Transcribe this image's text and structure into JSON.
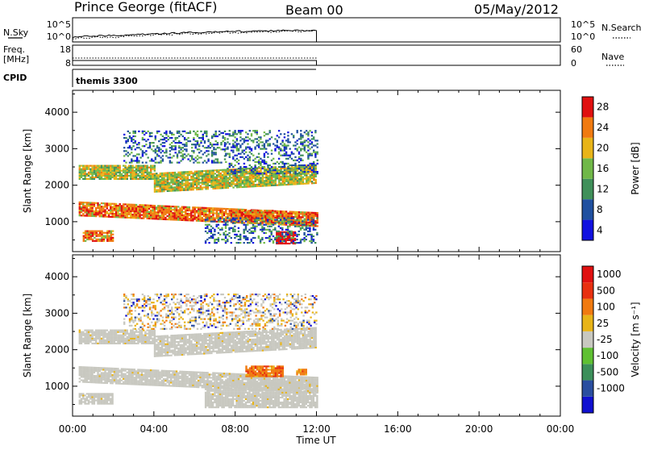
{
  "header": {
    "station": "Prince George (fitACF)",
    "beam": "Beam 00",
    "date": "05/May/2012"
  },
  "strip_labels": {
    "nsky": "N.Sky",
    "nsky_top": "10^5",
    "nsky_bottom": "10^0",
    "nsearch": "N.Search",
    "nsearch_top": "10^5",
    "nsearch_bottom": "10^0",
    "freq_line1": "Freq.",
    "freq_line2": "[MHz]",
    "freq_top": "18",
    "freq_bottom": "8",
    "nave": "Nave",
    "nave_top": "60",
    "nave_bottom": "0",
    "cpid": "CPID",
    "cpid_value": "themis 3300"
  },
  "chart_data": [
    {
      "type": "heatmap",
      "parameter": "Power",
      "ylabel": "Slant Range [km]",
      "colorbar_label": "Power [dB]",
      "colorbar_ticks": [
        "4",
        "8",
        "12",
        "16",
        "20",
        "24",
        "28"
      ],
      "colors": [
        "#1010e0",
        "#2050a0",
        "#40905a",
        "#70b848",
        "#e8b418",
        "#f07a10",
        "#e01010"
      ],
      "xlim": [
        "00:00",
        "24:00"
      ],
      "ylim": [
        180,
        4600
      ],
      "yticks": [
        1000,
        2000,
        3000,
        4000
      ],
      "data_end": "12:00",
      "bands": [
        {
          "t0": 0.3,
          "t1": 12.0,
          "r0": 1150,
          "r1": 1550,
          "level": "high",
          "slope": -25
        },
        {
          "t0": 0.3,
          "t1": 4.0,
          "r0": 2150,
          "r1": 2550,
          "level": "mid",
          "slope": 0
        },
        {
          "t0": 4.0,
          "t1": 12.0,
          "r0": 1800,
          "r1": 2300,
          "level": "mid",
          "slope": 30
        },
        {
          "t0": 2.5,
          "t1": 7.5,
          "r0": 2600,
          "r1": 3500,
          "level": "low",
          "slope": 0
        },
        {
          "t0": 7.5,
          "t1": 12.0,
          "r0": 2300,
          "r1": 3500,
          "level": "low",
          "slope": 0
        },
        {
          "t0": 8.0,
          "t1": 9.8,
          "r0": 1100,
          "r1": 1300,
          "level": "high",
          "slope": 0
        },
        {
          "t0": 10.0,
          "t1": 10.9,
          "r0": 380,
          "r1": 700,
          "level": "peak",
          "slope": 0
        },
        {
          "t0": 0.5,
          "t1": 2.0,
          "r0": 450,
          "r1": 750,
          "level": "high",
          "slope": 0
        },
        {
          "t0": 6.5,
          "t1": 12.0,
          "r0": 400,
          "r1": 1100,
          "level": "low",
          "slope": 0
        }
      ]
    },
    {
      "type": "heatmap",
      "parameter": "Velocity",
      "ylabel": "Slant Range [km]",
      "colorbar_label": "Velocity [m s⁻¹]",
      "colorbar_ticks": [
        "1000",
        "500",
        "100",
        "25",
        "-25",
        "-100",
        "-500",
        "-1000"
      ],
      "colors": [
        "#1010d0",
        "#2a4ea0",
        "#3c8f5a",
        "#5fc032",
        "#c8c8c0",
        "#e8b418",
        "#f07a10",
        "#e83010",
        "#e01010"
      ],
      "xlim": [
        "00:00",
        "24:00"
      ],
      "ylim": [
        180,
        4600
      ],
      "yticks": [
        1000,
        2000,
        3000,
        4000
      ],
      "data_end": "12:00",
      "bands": [
        {
          "t0": 0.3,
          "t1": 12.0,
          "r0": 1100,
          "r1": 1550,
          "level": "ground",
          "slope": -25
        },
        {
          "t0": 4.0,
          "t1": 12.0,
          "r0": 1800,
          "r1": 2350,
          "level": "ground",
          "slope": 30
        },
        {
          "t0": 0.3,
          "t1": 4.0,
          "r0": 2150,
          "r1": 2550,
          "level": "ground",
          "slope": 0
        },
        {
          "t0": 8.5,
          "t1": 10.3,
          "r0": 1250,
          "r1": 1550,
          "level": "flow",
          "slope": 0
        },
        {
          "t0": 11.0,
          "t1": 11.5,
          "r0": 1300,
          "r1": 1450,
          "level": "flow",
          "slope": 0
        },
        {
          "t0": 0.3,
          "t1": 2.0,
          "r0": 500,
          "r1": 800,
          "level": "ground",
          "slope": 0
        },
        {
          "t0": 6.5,
          "t1": 12.0,
          "r0": 400,
          "r1": 1100,
          "level": "ground",
          "slope": 0
        },
        {
          "t0": 2.5,
          "t1": 12.0,
          "r0": 2550,
          "r1": 3500,
          "level": "scatter",
          "slope": 0
        }
      ]
    }
  ],
  "x_axis": {
    "ticks": [
      "00:00",
      "04:00",
      "08:00",
      "12:00",
      "16:00",
      "20:00",
      "00:00"
    ],
    "label": "Time UT"
  }
}
